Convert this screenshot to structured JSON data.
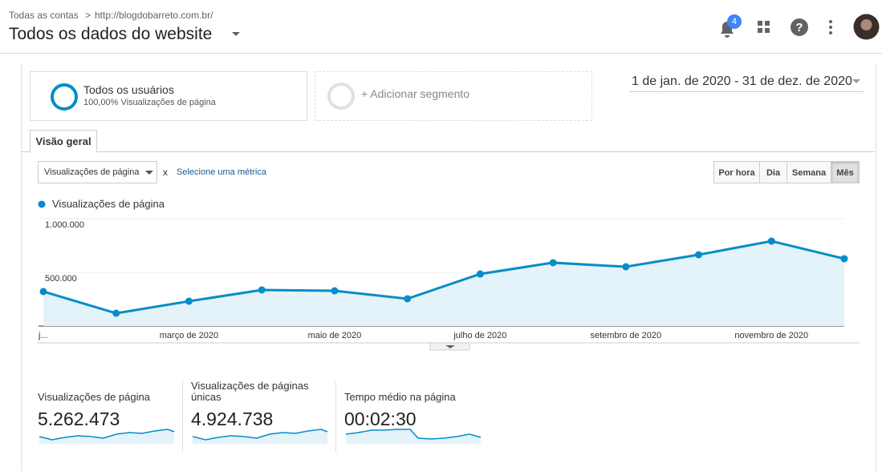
{
  "header": {
    "breadcrumb": [
      "Todas as contas",
      ">",
      "http://blogdobarreto.com.br/"
    ],
    "title": "Todos os dados do website",
    "notifications": "4"
  },
  "segments": {
    "active": {
      "name": "Todos os usuários",
      "detail": "100,00% Visualizações de página"
    },
    "add": "+ Adicionar segmento"
  },
  "date_range": "1 de jan. de 2020 - 31 de dez. de 2020",
  "tab": "Visão geral",
  "controls": {
    "metric": "Visualizações de página",
    "remove": "x",
    "select_metric": "Selecione uma métrica",
    "granularity": [
      "Por hora",
      "Dia",
      "Semana",
      "Mês"
    ]
  },
  "chart": {
    "type": "line",
    "categories": [
      "j...",
      null,
      "março de 2020",
      null,
      "maio de 2020",
      null,
      "julho de 2020",
      null,
      "setembro de 2020",
      null,
      "novembro de 2020",
      null
    ],
    "series": [
      {
        "name": "Visualizações de página",
        "color": "#058dc7",
        "values": [
          321000,
          119000,
          231000,
          336000,
          328000,
          254000,
          485000,
          590000,
          552000,
          664000,
          791000,
          627000
        ]
      }
    ],
    "ylim": [
      0,
      1000000
    ],
    "yticks": [
      {
        "value": 500000,
        "label": "500.000"
      },
      {
        "value": 1000000,
        "label": "1.000.000"
      }
    ],
    "grid": true,
    "area": true
  },
  "metrics": [
    {
      "label": "Visualizações de página",
      "value": "5.262.473"
    },
    {
      "label": "Visualizações de páginas únicas",
      "value": "4.924.738"
    },
    {
      "label": "Tempo médio na página",
      "value": "00:02:30"
    }
  ]
}
